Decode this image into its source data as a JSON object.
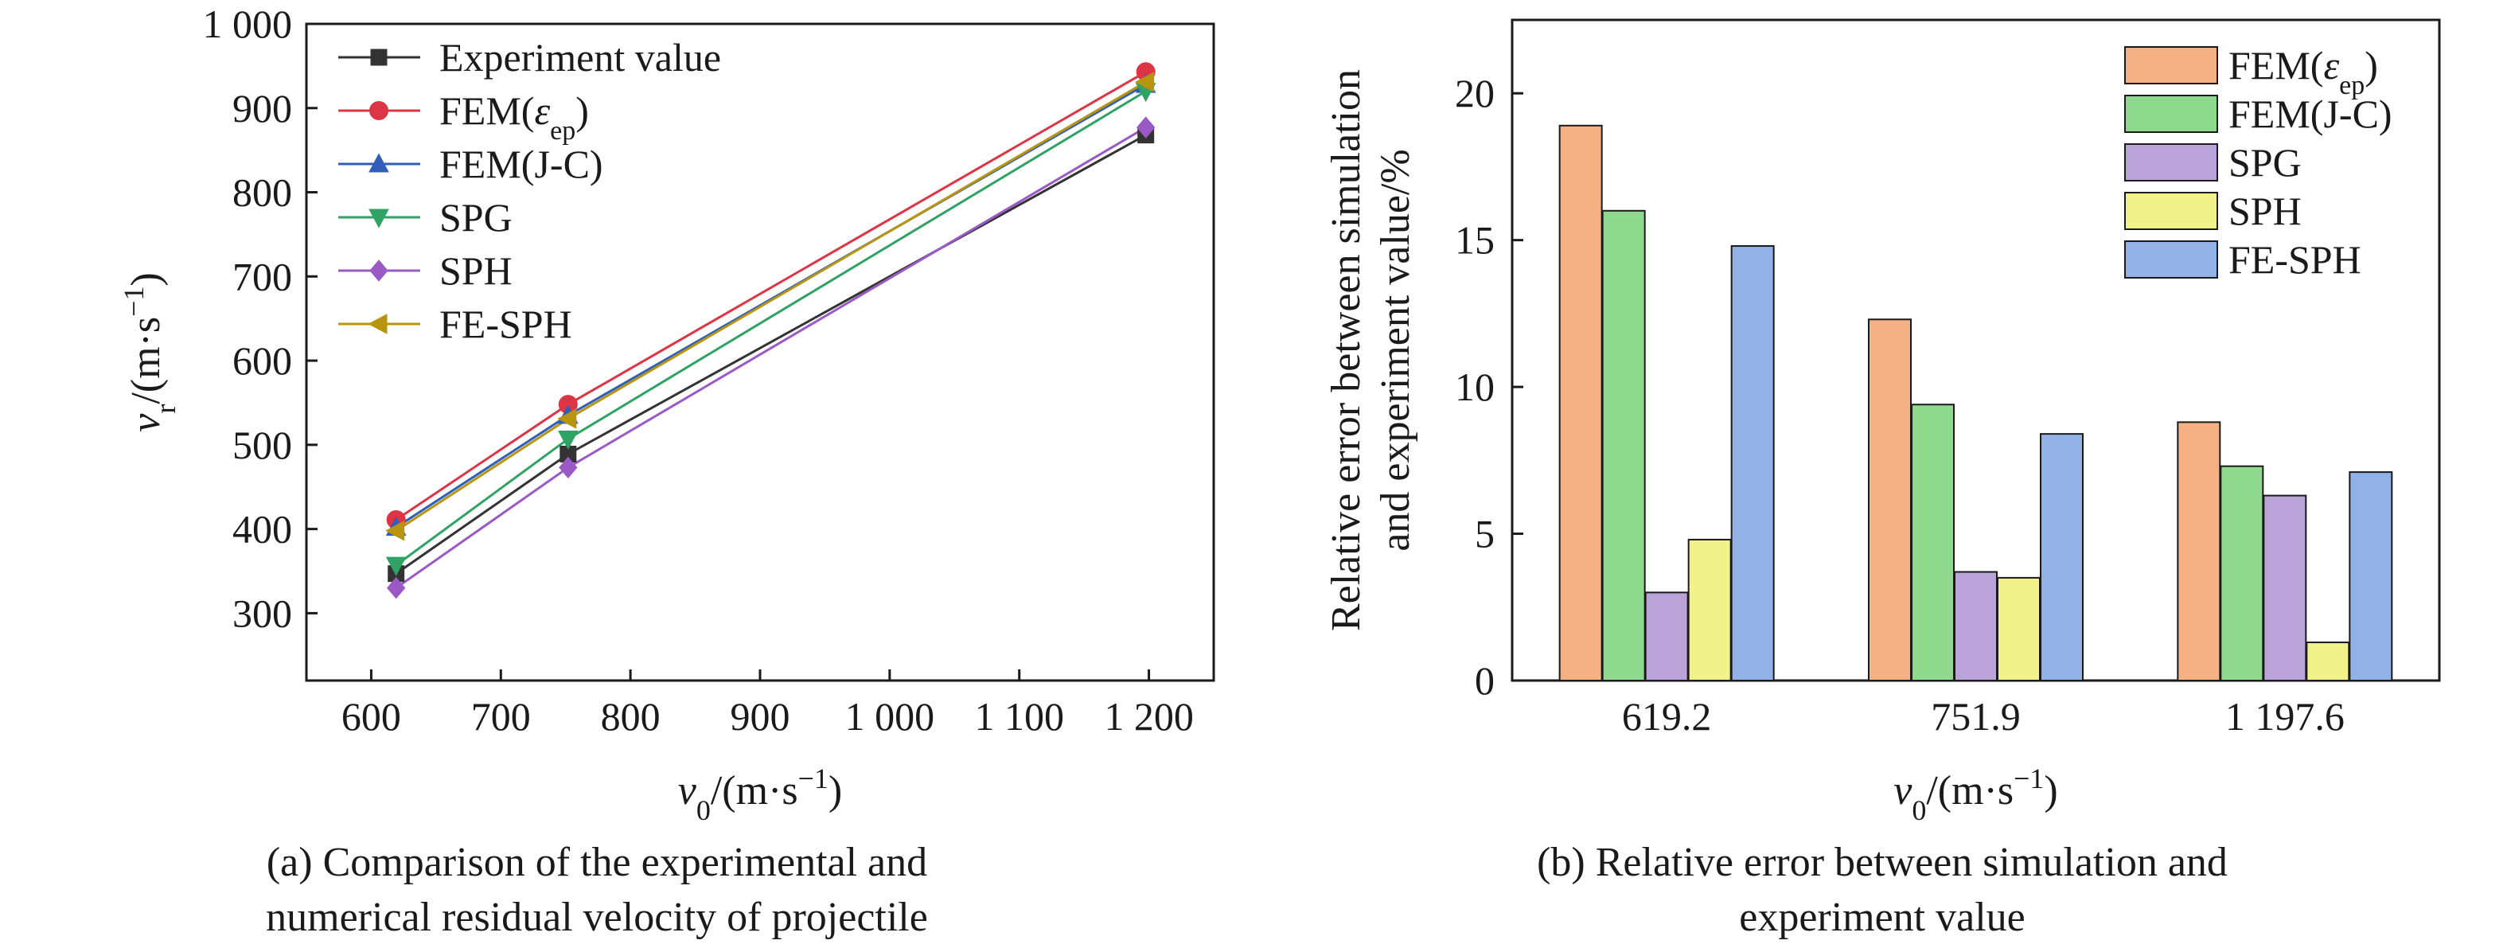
{
  "chart_data": [
    {
      "type": "line",
      "caption": "(a) Comparison of the experimental and numerical residual velocity of projectile",
      "xlabel": "v0/(m·s−1)",
      "ylabel": "vr/(m·s−1)",
      "xlim": [
        550,
        1250
      ],
      "ylim": [
        220,
        1000
      ],
      "xticks": [
        600,
        700,
        800,
        900,
        1000,
        1100,
        1200
      ],
      "xtick_labels": [
        "600",
        "700",
        "800",
        "900",
        "1 000",
        "1 100",
        "1 200"
      ],
      "yticks": [
        300,
        400,
        500,
        600,
        700,
        800,
        900,
        1000
      ],
      "ytick_labels": [
        "300",
        "400",
        "500",
        "600",
        "700",
        "800",
        "900",
        "1 000"
      ],
      "legend": "top-left",
      "x": [
        619.2,
        751.9,
        1197.6
      ],
      "series": [
        {
          "name": "Experiment value",
          "color": "#333333",
          "marker": "square",
          "values": [
            347,
            489,
            868
          ]
        },
        {
          "name": "FEM(εep)",
          "color": "#dc3545",
          "marker": "circle",
          "values": [
            411,
            548,
            943
          ]
        },
        {
          "name": "FEM(J-C)",
          "color": "#2f5fb8",
          "marker": "triangle-up",
          "values": [
            402,
            535,
            928
          ]
        },
        {
          "name": "SPG",
          "color": "#2ea363",
          "marker": "triangle-down",
          "values": [
            357,
            507,
            920
          ]
        },
        {
          "name": "SPH",
          "color": "#9b59c6",
          "marker": "diamond",
          "values": [
            330,
            473,
            877
          ]
        },
        {
          "name": "FE-SPH",
          "color": "#b8940f",
          "marker": "triangle-left",
          "values": [
            398,
            531,
            931
          ]
        }
      ]
    },
    {
      "type": "bar",
      "caption": "(b) Relative error between simulation and experiment value",
      "xlabel": "v0/(m·s−1)",
      "ylabel_lines": [
        "Relative error between simulation",
        "and experiment value/%"
      ],
      "categories": [
        "619.2",
        "751.9",
        "1 197.6"
      ],
      "ylim": [
        0,
        22.5
      ],
      "yticks": [
        0,
        5,
        10,
        15,
        20
      ],
      "legend": "top-right",
      "series": [
        {
          "name": "FEM(εep)",
          "color": "#f5b183",
          "values": [
            18.9,
            12.3,
            8.8
          ]
        },
        {
          "name": "FEM(J-C)",
          "color": "#8fd98f",
          "values": [
            16.0,
            9.4,
            7.3
          ]
        },
        {
          "name": "SPG",
          "color": "#b9a3d8",
          "values": [
            3.0,
            3.7,
            6.3
          ]
        },
        {
          "name": "SPH",
          "color": "#f2f28a",
          "values": [
            4.8,
            3.5,
            1.3
          ]
        },
        {
          "name": "FE-SPH",
          "color": "#92b1e6",
          "values": [
            14.8,
            8.4,
            7.1
          ]
        }
      ]
    }
  ]
}
